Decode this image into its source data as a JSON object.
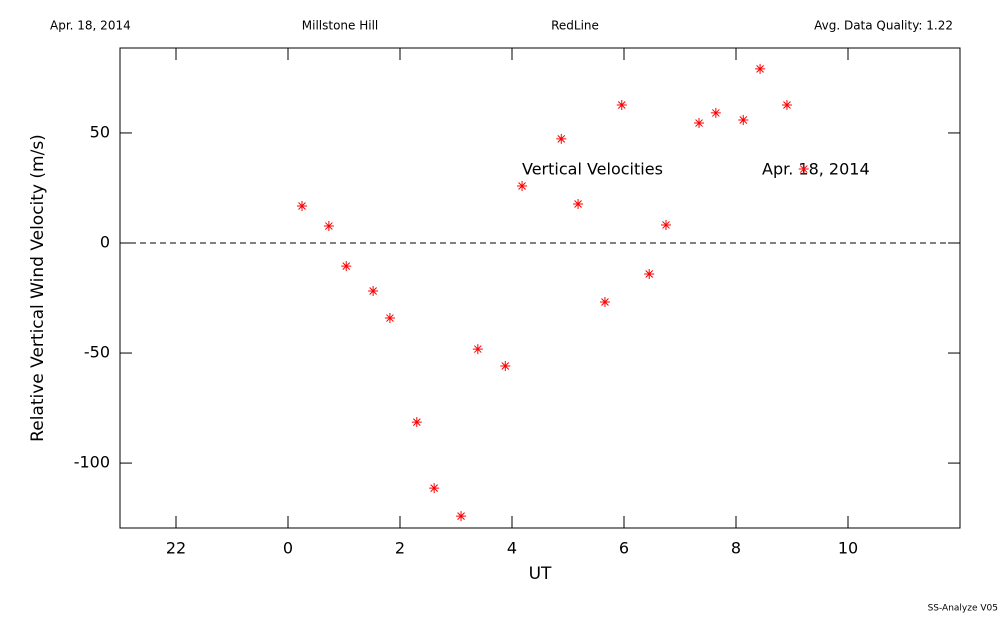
{
  "chart_data": {
    "type": "scatter",
    "header": {
      "date": "Apr. 18, 2014",
      "site": "Millstone Hill",
      "line": "RedLine",
      "quality": "Avg. Data Quality: 1.22"
    },
    "xlabel": "UT",
    "ylabel": "Relative Vertical Wind Velocity (m/s)",
    "annotations": [
      "Vertical Velocities",
      "Apr. 18, 2014"
    ],
    "footer": "SS-Analyze V05",
    "xlim": [
      -3,
      12
    ],
    "ylim": [
      -129.5,
      88.6
    ],
    "xticks": [
      {
        "value": -2,
        "label": "22"
      },
      0,
      2,
      4,
      6,
      8,
      10
    ],
    "yticks": [
      -100,
      -50,
      0,
      50
    ],
    "reference_line": 0,
    "color": "#ff0000",
    "x": [
      0.25,
      0.73,
      1.04,
      1.52,
      1.82,
      2.3,
      2.61,
      3.09,
      3.39,
      3.88,
      4.18,
      4.88,
      5.18,
      5.66,
      5.96,
      6.45,
      6.75,
      7.34,
      7.64,
      8.13,
      8.43,
      8.91,
      9.21
    ],
    "values": [
      16.8,
      7.7,
      -10.5,
      -21.8,
      -34.1,
      -81.4,
      -111.4,
      -124.1,
      -48.2,
      -55.9,
      25.9,
      47.3,
      17.7,
      -26.8,
      62.7,
      -14.1,
      8.2,
      54.5,
      59.1,
      55.9,
      79.1,
      62.7,
      33.6
    ]
  }
}
